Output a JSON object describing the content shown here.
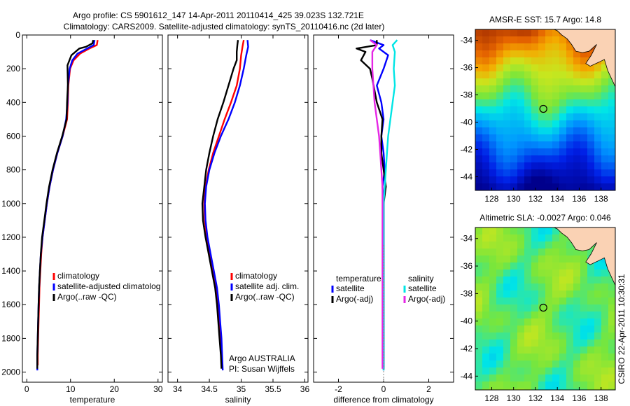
{
  "header": {
    "line1": "Argo profile: CS 5901612_147 14-Apr-2011 20110414_425 39.023S 132.721E",
    "line2": "Climatology: CARS2009. Satellite-adjusted climatology: synTS_20110416.nc (2d later)"
  },
  "footer_credit": "CSIRO 22-Apr-2011 10:30:31",
  "chart_data": [
    {
      "type": "line",
      "xlabel": "temperature",
      "xlim": [
        -1,
        31
      ],
      "xticks": [
        0,
        10,
        20,
        30
      ],
      "ylim": [
        2060,
        0
      ],
      "yticks": [
        0,
        200,
        400,
        600,
        800,
        1000,
        1200,
        1400,
        1600,
        1800,
        2000
      ],
      "legend": [
        "climatology",
        "satellite-adjusted climatolog",
        "Argo(..raw -QC)"
      ],
      "series": [
        {
          "name": "climatology",
          "color": "#ff0000",
          "points": [
            [
              16.2,
              30
            ],
            [
              16.0,
              60
            ],
            [
              14.3,
              80
            ],
            [
              12.2,
              110
            ],
            [
              10.7,
              150
            ],
            [
              9.9,
              200
            ],
            [
              9.5,
              300
            ],
            [
              9.4,
              400
            ],
            [
              9.2,
              500
            ],
            [
              8.2,
              600
            ],
            [
              7.0,
              700
            ],
            [
              6.0,
              800
            ],
            [
              5.2,
              900
            ],
            [
              4.6,
              1000
            ],
            [
              4.1,
              1100
            ],
            [
              3.6,
              1200
            ],
            [
              3.3,
              1300
            ],
            [
              3.1,
              1400
            ],
            [
              2.9,
              1500
            ],
            [
              2.8,
              1600
            ],
            [
              2.7,
              1700
            ],
            [
              2.6,
              1800
            ],
            [
              2.5,
              1900
            ],
            [
              2.5,
              1960
            ]
          ]
        },
        {
          "name": "satellite-adjusted climatolog",
          "color": "#0000ff",
          "points": [
            [
              15.5,
              30
            ],
            [
              15.3,
              60
            ],
            [
              13.8,
              80
            ],
            [
              11.6,
              110
            ],
            [
              10.4,
              150
            ],
            [
              9.8,
              200
            ],
            [
              9.4,
              300
            ],
            [
              9.3,
              400
            ],
            [
              9.0,
              500
            ],
            [
              8.2,
              600
            ],
            [
              7.0,
              700
            ],
            [
              6.0,
              800
            ],
            [
              5.2,
              900
            ],
            [
              4.6,
              1000
            ],
            [
              4.1,
              1100
            ],
            [
              3.6,
              1200
            ],
            [
              3.2,
              1300
            ],
            [
              3.0,
              1400
            ],
            [
              2.8,
              1500
            ],
            [
              2.7,
              1600
            ],
            [
              2.6,
              1700
            ],
            [
              2.5,
              1800
            ],
            [
              2.4,
              1900
            ],
            [
              2.4,
              1990
            ]
          ]
        },
        {
          "name": "Argo(..raw -QC)",
          "color": "#000000",
          "points": [
            [
              15.2,
              30
            ],
            [
              15.0,
              50
            ],
            [
              13.5,
              70
            ],
            [
              12.0,
              80
            ],
            [
              10.2,
              120
            ],
            [
              9.3,
              180
            ],
            [
              9.4,
              300
            ],
            [
              9.2,
              400
            ],
            [
              9.1,
              500
            ],
            [
              8.1,
              600
            ],
            [
              6.9,
              700
            ],
            [
              5.9,
              800
            ],
            [
              5.1,
              900
            ],
            [
              4.5,
              1000
            ],
            [
              4.0,
              1100
            ],
            [
              3.5,
              1200
            ],
            [
              3.2,
              1300
            ],
            [
              3.0,
              1400
            ],
            [
              2.8,
              1500
            ],
            [
              2.7,
              1600
            ],
            [
              2.6,
              1700
            ],
            [
              2.5,
              1800
            ],
            [
              2.4,
              1900
            ],
            [
              2.4,
              1980
            ]
          ]
        }
      ]
    },
    {
      "type": "line",
      "xlabel": "salinity",
      "xlim": [
        33.85,
        36.05
      ],
      "xticks": [
        34,
        34.5,
        35,
        35.5,
        36
      ],
      "ylim": [
        2060,
        0
      ],
      "legend": [
        "climatology",
        "satellite adj. clim.",
        "Argo(..raw -QC)"
      ],
      "annotation": [
        "Argo AUSTRALIA",
        "PI: Susan Wijffels"
      ],
      "series": [
        {
          "name": "climatology",
          "color": "#ff0000",
          "points": [
            [
              35.04,
              30
            ],
            [
              35.02,
              70
            ],
            [
              35.0,
              120
            ],
            [
              34.98,
              200
            ],
            [
              34.93,
              300
            ],
            [
              34.84,
              400
            ],
            [
              34.74,
              500
            ],
            [
              34.65,
              600
            ],
            [
              34.56,
              700
            ],
            [
              34.49,
              800
            ],
            [
              34.44,
              900
            ],
            [
              34.42,
              1000
            ],
            [
              34.43,
              1100
            ],
            [
              34.46,
              1200
            ],
            [
              34.5,
              1300
            ],
            [
              34.55,
              1400
            ],
            [
              34.6,
              1500
            ],
            [
              34.63,
              1600
            ],
            [
              34.66,
              1700
            ],
            [
              34.68,
              1800
            ],
            [
              34.69,
              1900
            ],
            [
              34.7,
              1960
            ]
          ]
        },
        {
          "name": "satellite adj. clim.",
          "color": "#0000ff",
          "points": [
            [
              35.1,
              30
            ],
            [
              35.11,
              70
            ],
            [
              35.08,
              120
            ],
            [
              35.04,
              200
            ],
            [
              34.98,
              300
            ],
            [
              34.9,
              400
            ],
            [
              34.8,
              500
            ],
            [
              34.68,
              600
            ],
            [
              34.58,
              700
            ],
            [
              34.5,
              800
            ],
            [
              34.45,
              900
            ],
            [
              34.43,
              1000
            ],
            [
              34.44,
              1100
            ],
            [
              34.47,
              1200
            ],
            [
              34.52,
              1300
            ],
            [
              34.57,
              1400
            ],
            [
              34.62,
              1500
            ],
            [
              34.65,
              1600
            ],
            [
              34.67,
              1700
            ],
            [
              34.69,
              1800
            ],
            [
              34.7,
              1900
            ],
            [
              34.71,
              1990
            ]
          ]
        },
        {
          "name": "Argo(..raw -QC)",
          "color": "#000000",
          "points": [
            [
              34.95,
              30
            ],
            [
              34.94,
              60
            ],
            [
              34.93,
              100
            ],
            [
              34.93,
              150
            ],
            [
              34.88,
              200
            ],
            [
              34.8,
              300
            ],
            [
              34.72,
              400
            ],
            [
              34.63,
              500
            ],
            [
              34.56,
              600
            ],
            [
              34.5,
              700
            ],
            [
              34.45,
              800
            ],
            [
              34.42,
              900
            ],
            [
              34.39,
              1000
            ],
            [
              34.4,
              1100
            ],
            [
              34.44,
              1200
            ],
            [
              34.49,
              1300
            ],
            [
              34.54,
              1400
            ],
            [
              34.59,
              1500
            ],
            [
              34.62,
              1600
            ],
            [
              34.64,
              1700
            ],
            [
              34.66,
              1800
            ],
            [
              34.68,
              1900
            ],
            [
              34.69,
              1980
            ]
          ]
        }
      ]
    },
    {
      "type": "line",
      "xlabel": "difference from climatology",
      "xlim": [
        -3.1,
        3.1
      ],
      "xticks": [
        -2,
        0,
        2
      ],
      "ylim": [
        2060,
        0
      ],
      "legend_headers": [
        "temperature",
        "salinity"
      ],
      "legend": [
        "satellite",
        "Argo(-adj)",
        "satellite",
        "Argo(-adj)"
      ],
      "series": [
        {
          "name": "temperature satellite",
          "color": "#0000ff",
          "points": [
            [
              -0.6,
              30
            ],
            [
              0.0,
              60
            ],
            [
              -0.2,
              80
            ],
            [
              0.2,
              120
            ],
            [
              0.0,
              200
            ],
            [
              -0.3,
              300
            ],
            [
              -0.1,
              400
            ],
            [
              0.0,
              500
            ],
            [
              -0.1,
              600
            ],
            [
              0.0,
              700
            ],
            [
              0.05,
              800
            ],
            [
              -0.05,
              900
            ],
            [
              0.0,
              1000
            ],
            [
              0.0,
              1200
            ],
            [
              0.0,
              1500
            ],
            [
              0.0,
              1800
            ],
            [
              0.0,
              1990
            ]
          ]
        },
        {
          "name": "temperature Argo(-adj)",
          "color": "#000000",
          "points": [
            [
              -0.3,
              30
            ],
            [
              -0.3,
              60
            ],
            [
              -1.2,
              80
            ],
            [
              -0.8,
              100
            ],
            [
              -1.0,
              150
            ],
            [
              -0.6,
              200
            ],
            [
              -0.5,
              260
            ],
            [
              -0.4,
              330
            ],
            [
              -0.3,
              400
            ],
            [
              -0.05,
              500
            ],
            [
              -0.1,
              600
            ],
            [
              -0.1,
              700
            ],
            [
              0.0,
              800
            ],
            [
              0.1,
              900
            ],
            [
              0.0,
              1000
            ],
            [
              0.0,
              1200
            ],
            [
              0.0,
              1500
            ],
            [
              0.0,
              1800
            ],
            [
              0.0,
              1980
            ]
          ]
        },
        {
          "name": "salinity satellite",
          "color": "#00e5e5",
          "points": [
            [
              0.6,
              30
            ],
            [
              0.4,
              60
            ],
            [
              0.5,
              100
            ],
            [
              0.45,
              200
            ],
            [
              0.5,
              300
            ],
            [
              0.4,
              400
            ],
            [
              0.3,
              500
            ],
            [
              0.2,
              600
            ],
            [
              0.15,
              700
            ],
            [
              0.1,
              800
            ],
            [
              0.05,
              900
            ],
            [
              0.0,
              1000
            ],
            [
              0.0,
              1200
            ],
            [
              0.0,
              1500
            ],
            [
              0.0,
              1800
            ],
            [
              0.0,
              1990
            ]
          ]
        },
        {
          "name": "salinity Argo(-adj)",
          "color": "#e526e5",
          "points": [
            [
              -0.6,
              30
            ],
            [
              -0.3,
              60
            ],
            [
              -0.5,
              100
            ],
            [
              -0.5,
              200
            ],
            [
              -0.45,
              300
            ],
            [
              -0.4,
              400
            ],
            [
              -0.3,
              500
            ],
            [
              -0.2,
              600
            ],
            [
              -0.15,
              700
            ],
            [
              -0.1,
              800
            ],
            [
              -0.05,
              900
            ],
            [
              -0.05,
              1000
            ],
            [
              -0.05,
              1200
            ],
            [
              -0.05,
              1500
            ],
            [
              -0.05,
              1800
            ],
            [
              -0.05,
              1980
            ]
          ]
        }
      ]
    },
    {
      "type": "heatmap",
      "title": "AMSR-E SST: 15.7 Argo: 14.8",
      "xlim": [
        126.5,
        139.3
      ],
      "ylim": [
        -45,
        -33.2
      ],
      "xticks": [
        128,
        130,
        132,
        134,
        136,
        138
      ],
      "yticks": [
        -34,
        -36,
        -38,
        -40,
        -42,
        -44
      ],
      "marker": [
        132.721,
        -39.023
      ],
      "colormap": "jet"
    },
    {
      "type": "heatmap",
      "title": "Altimetric SLA: -0.0027 Argo: 0.046",
      "xlim": [
        126.5,
        139.3
      ],
      "ylim": [
        -45,
        -33.2
      ],
      "xticks": [
        128,
        130,
        132,
        134,
        136,
        138
      ],
      "yticks": [
        -34,
        -36,
        -38,
        -40,
        -42,
        -44
      ],
      "marker": [
        132.721,
        -39.023
      ],
      "colormap": "jet"
    }
  ]
}
